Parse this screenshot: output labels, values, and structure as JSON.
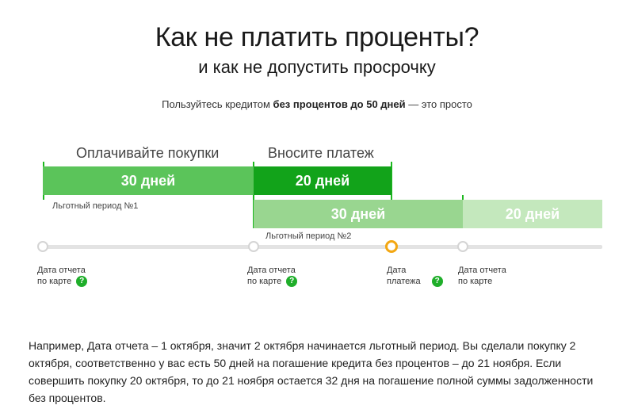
{
  "header": {
    "title": "Как не платить проценты?",
    "subtitle": "и как не допустить просрочку"
  },
  "intro": {
    "before": "Пользуйтесь кредитом ",
    "bold": "без процентов до 50 дней",
    "after": " — это просто"
  },
  "segments": {
    "pay_purchases": "Оплачивайте покупки",
    "make_payment": "Вносите платеж"
  },
  "bars": {
    "period1_days": "30 дней",
    "payment_days": "20 дней",
    "period2_days": "30 дней",
    "period2_payment_days": "20 дней"
  },
  "period_labels": {
    "first": "Льготный период №1",
    "second": "Льготный период №2"
  },
  "timeline": {
    "markers": [
      {
        "line1": "Дата отчета",
        "line2": "по карте",
        "help": true,
        "state": "default"
      },
      {
        "line1": "Дата отчета",
        "line2": "по карте",
        "help": true,
        "state": "default"
      },
      {
        "line1": "Дата",
        "line2": "платежа",
        "help": true,
        "state": "active"
      },
      {
        "line1": "Дата отчета",
        "line2": "по карте",
        "help": false,
        "state": "default"
      }
    ],
    "help_glyph": "?"
  },
  "example": {
    "text": "Например, Дата отчета – 1 октября, значит 2 октября начинается льготный период. Вы сделали покупку 2 октября, соответственно у вас есть 50 дней на погашение кредита без процентов – до 21 ноября. Если совершить покупку 20 октября, то до 21 ноября остается 32 дня на погашение полной суммы задолженности без процентов."
  },
  "colors": {
    "bar_primary": "#5bc45a",
    "bar_dark": "#12a31a",
    "bar_light": "#99d690",
    "bar_lighter": "#c4e8bd",
    "marker_active": "#f3a712",
    "help_badge": "#1fae2a"
  }
}
